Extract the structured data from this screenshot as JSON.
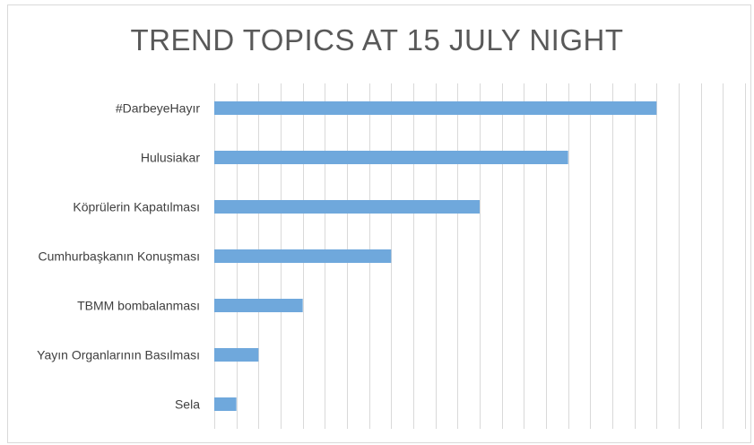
{
  "chart_data": {
    "type": "bar",
    "orientation": "horizontal",
    "title": "TREND TOPICS AT 15 JULY NIGHT",
    "categories": [
      "#DarbeyeHayır",
      "Hulusiakar",
      "Köprülerin Kapatılması",
      "Cumhurbaşkanın Konuşması",
      "TBMM bombalanması",
      "Yayın Organlarının Basılması",
      "Sela"
    ],
    "values": [
      100,
      80,
      60,
      40,
      20,
      10,
      5
    ],
    "xlim": [
      0,
      120
    ],
    "grid": true,
    "legend": "none",
    "colors": {
      "bar": "#6fa8dc",
      "grid": "#d9d9d9",
      "text": "#404040",
      "title": "#595959"
    }
  }
}
